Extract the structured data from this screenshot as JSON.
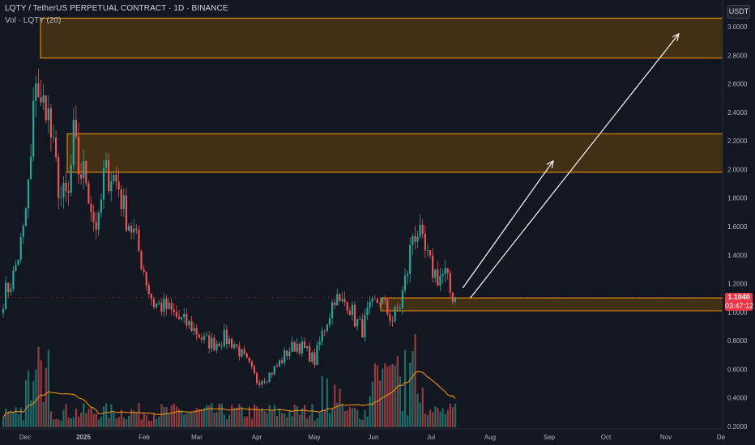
{
  "header": {
    "title": "LQTY / TetherUS PERPETUAL CONTRACT · 1D · BINANCE",
    "vol_label": "Vol · LQTY (20)"
  },
  "axis": {
    "currency_button": "USDT",
    "y_ticks": [
      "3.0000",
      "2.8000",
      "2.6000",
      "2.4000",
      "2.2000",
      "2.0000",
      "1.8000",
      "1.6000",
      "1.4000",
      "1.2000",
      "1.0000",
      "0.8000",
      "0.6000",
      "0.4000",
      "0.2000"
    ],
    "x_ticks": [
      "Dec",
      "2025",
      "Feb",
      "Mar",
      "Apr",
      "May",
      "Jun",
      "Jul",
      "Aug",
      "Sep",
      "Oct",
      "Nov",
      "De"
    ]
  },
  "last_price": {
    "value": "1.1040",
    "countdown": "03:47:12"
  },
  "colors": {
    "background": "#131722",
    "up": "#26a69a",
    "down": "#ef5350",
    "zone_fill": "#4a3510",
    "zone_border": "#ff9800",
    "volume_ma": "#ff9800",
    "price_tag": "#f23645",
    "arrow": "#ffffff"
  },
  "chart_data": {
    "type": "candlestick",
    "symbol": "LQTY / TetherUS PERPETUAL CONTRACT",
    "interval": "1D",
    "exchange": "BINANCE",
    "ylim": [
      0.18,
      3.12
    ],
    "last_price": 1.104,
    "zones": [
      {
        "low": 2.78,
        "high": 3.06
      },
      {
        "low": 1.98,
        "high": 2.25
      },
      {
        "low": 1.01,
        "high": 1.1
      }
    ],
    "projection_arrows": [
      {
        "from": [
          183,
          1.17
        ],
        "to": [
          219,
          2.06
        ]
      },
      {
        "from": [
          186,
          1.1
        ],
        "to": [
          269,
          2.95
        ]
      }
    ],
    "waypoints": [
      [
        0,
        1.1
      ],
      [
        4,
        1.25
      ],
      [
        8,
        1.55
      ],
      [
        11,
        2.05
      ],
      [
        13,
        2.7
      ],
      [
        15,
        2.4
      ],
      [
        17,
        2.5
      ],
      [
        20,
        2.1
      ],
      [
        23,
        1.8
      ],
      [
        26,
        1.8
      ],
      [
        28,
        2.22
      ],
      [
        30,
        2.0
      ],
      [
        33,
        1.95
      ],
      [
        36,
        1.65
      ],
      [
        38,
        1.6
      ],
      [
        40,
        1.95
      ],
      [
        43,
        1.98
      ],
      [
        46,
        1.88
      ],
      [
        48,
        1.72
      ],
      [
        52,
        1.55
      ],
      [
        56,
        1.3
      ],
      [
        58,
        1.15
      ],
      [
        60,
        1.06
      ],
      [
        65,
        1.03
      ],
      [
        70,
        0.95
      ],
      [
        75,
        0.9
      ],
      [
        80,
        0.8
      ],
      [
        84,
        0.78
      ],
      [
        88,
        0.82
      ],
      [
        92,
        0.78
      ],
      [
        95,
        0.7
      ],
      [
        98,
        0.62
      ],
      [
        101,
        0.52
      ],
      [
        105,
        0.55
      ],
      [
        109,
        0.62
      ],
      [
        113,
        0.72
      ],
      [
        117,
        0.78
      ],
      [
        121,
        0.72
      ],
      [
        124,
        0.66
      ],
      [
        127,
        0.85
      ],
      [
        130,
        1.0
      ],
      [
        132,
        1.12
      ],
      [
        134,
        1.05
      ],
      [
        137,
        1.08
      ],
      [
        140,
        0.95
      ],
      [
        143,
        0.88
      ],
      [
        145,
        0.98
      ],
      [
        147,
        1.03
      ],
      [
        150,
        1.1
      ],
      [
        153,
        1.0
      ],
      [
        155,
        0.95
      ],
      [
        158,
        1.05
      ],
      [
        161,
        1.3
      ],
      [
        163,
        1.55
      ],
      [
        165,
        1.57
      ],
      [
        167,
        1.45
      ],
      [
        170,
        1.32
      ],
      [
        173,
        1.25
      ],
      [
        176,
        1.26
      ],
      [
        178,
        1.14
      ],
      [
        180,
        1.104
      ]
    ],
    "n_days": 181
  }
}
